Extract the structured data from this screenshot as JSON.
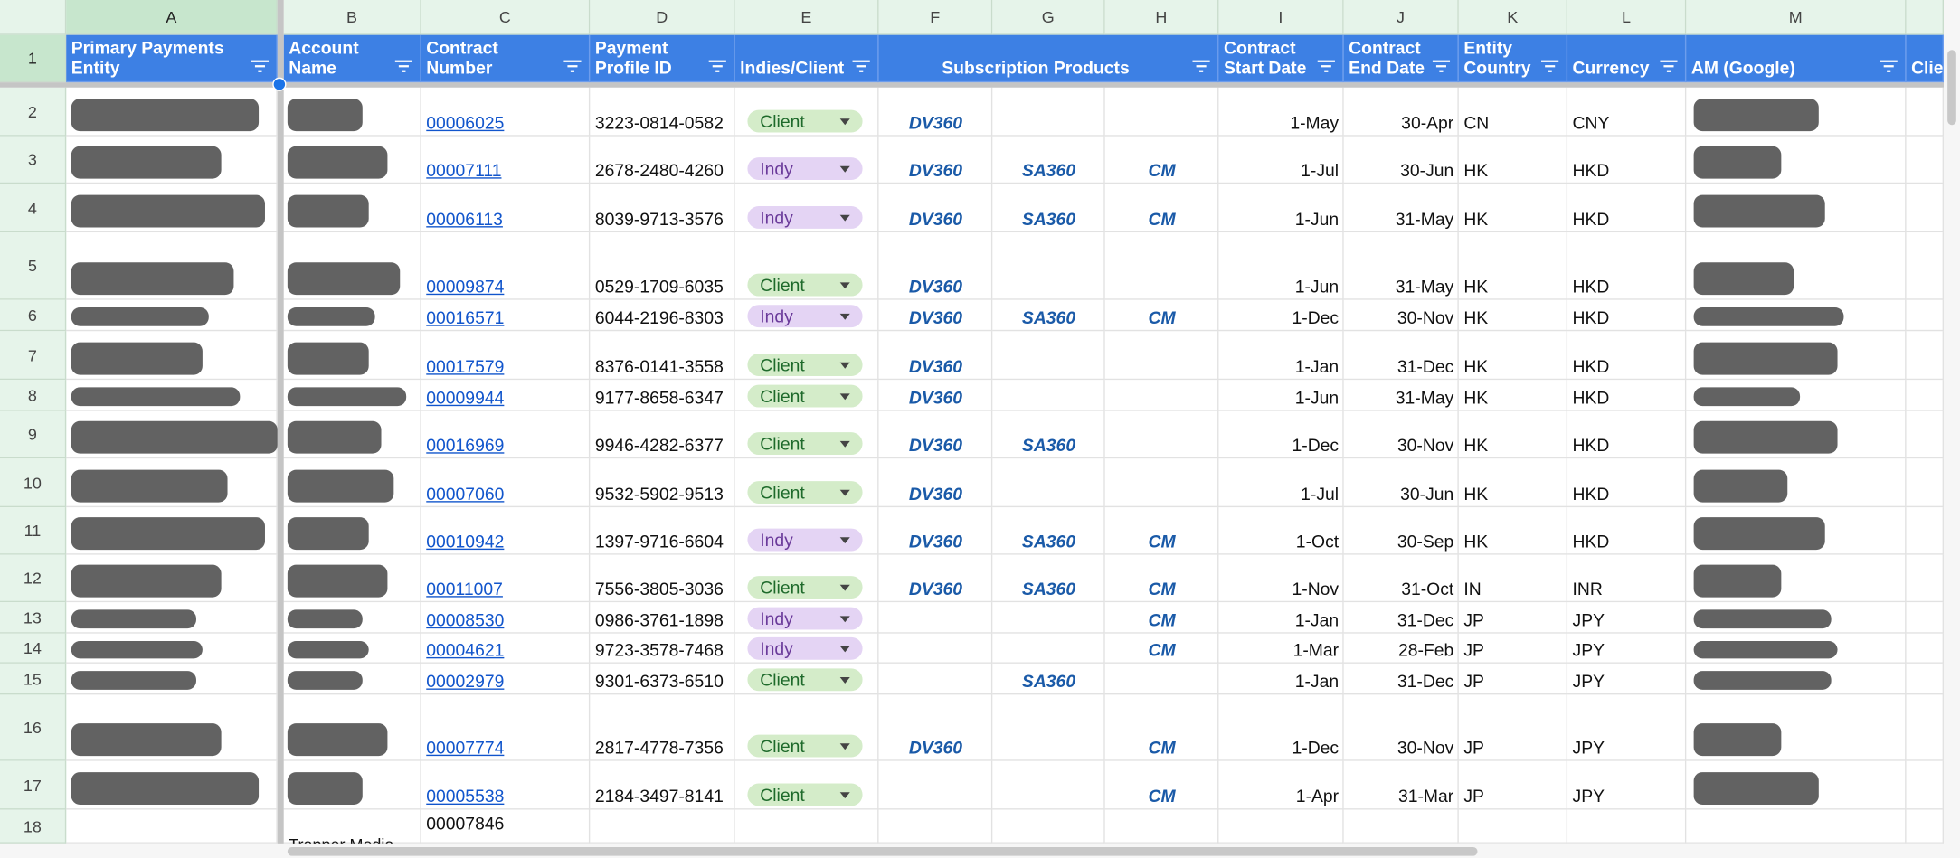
{
  "column_letters": [
    "A",
    "B",
    "C",
    "D",
    "E",
    "F",
    "G",
    "H",
    "I",
    "J",
    "K",
    "L",
    "M"
  ],
  "header": [
    "Primary Payments Entity",
    "Account Name",
    "Contract Number",
    "Payment Profile ID",
    "Indies/Client",
    "Subscription Products",
    "Contract Start Date",
    "Contract End Date",
    "Entity Country",
    "Currency",
    "AM (Google)",
    "Clie"
  ],
  "row_numbers": [
    1,
    2,
    3,
    4,
    5,
    6,
    7,
    8,
    9,
    10,
    11,
    12,
    13,
    14,
    15,
    16,
    17,
    18
  ],
  "rows": [
    {
      "contract": "00006025",
      "profile": "3223-0814-0582",
      "type": "Client",
      "dv360": "DV360",
      "start": "1-May",
      "end": "30-Apr",
      "country": "CN",
      "currency": "CNY"
    },
    {
      "contract": "00007111",
      "profile": "2678-2480-4260",
      "type": "Indy",
      "dv360": "DV360",
      "sa360": "SA360",
      "cm": "CM",
      "start": "1-Jul",
      "end": "30-Jun",
      "country": "HK",
      "currency": "HKD"
    },
    {
      "contract": "00006113",
      "profile": "8039-9713-3576",
      "type": "Indy",
      "dv360": "DV360",
      "sa360": "SA360",
      "cm": "CM",
      "start": "1-Jun",
      "end": "31-May",
      "country": "HK",
      "currency": "HKD"
    },
    {
      "contract": "00009874",
      "profile": "0529-1709-6035",
      "type": "Client",
      "dv360": "DV360",
      "start": "1-Jun",
      "end": "31-May",
      "country": "HK",
      "currency": "HKD"
    },
    {
      "contract": "00016571",
      "profile": "6044-2196-8303",
      "type": "Indy",
      "dv360": "DV360",
      "sa360": "SA360",
      "cm": "CM",
      "start": "1-Dec",
      "end": "30-Nov",
      "country": "HK",
      "currency": "HKD"
    },
    {
      "contract": "00017579",
      "profile": "8376-0141-3558",
      "type": "Client",
      "dv360": "DV360",
      "start": "1-Jan",
      "end": "31-Dec",
      "country": "HK",
      "currency": "HKD"
    },
    {
      "contract": "00009944",
      "profile": "9177-8658-6347",
      "type": "Client",
      "dv360": "DV360",
      "start": "1-Jun",
      "end": "31-May",
      "country": "HK",
      "currency": "HKD"
    },
    {
      "contract": "00016969",
      "profile": "9946-4282-6377",
      "type": "Client",
      "dv360": "DV360",
      "sa360": "SA360",
      "start": "1-Dec",
      "end": "30-Nov",
      "country": "HK",
      "currency": "HKD"
    },
    {
      "contract": "00007060",
      "profile": "9532-5902-9513",
      "type": "Client",
      "dv360": "DV360",
      "start": "1-Jul",
      "end": "30-Jun",
      "country": "HK",
      "currency": "HKD"
    },
    {
      "contract": "00010942",
      "profile": "1397-9716-6604",
      "type": "Indy",
      "dv360": "DV360",
      "sa360": "SA360",
      "cm": "CM",
      "start": "1-Oct",
      "end": "30-Sep",
      "country": "HK",
      "currency": "HKD"
    },
    {
      "contract": "00011007",
      "profile": "7556-3805-3036",
      "type": "Client",
      "dv360": "DV360",
      "sa360": "SA360",
      "cm": "CM",
      "start": "1-Nov",
      "end": "31-Oct",
      "country": "IN",
      "currency": "INR"
    },
    {
      "contract": "00008530",
      "profile": "0986-3761-1898",
      "type": "Indy",
      "cm": "CM",
      "start": "1-Jan",
      "end": "31-Dec",
      "country": "JP",
      "currency": "JPY"
    },
    {
      "contract": "00004621",
      "profile": "9723-3578-7468",
      "type": "Indy",
      "cm": "CM",
      "start": "1-Mar",
      "end": "28-Feb",
      "country": "JP",
      "currency": "JPY"
    },
    {
      "contract": "00002979",
      "profile": "9301-6373-6510",
      "type": "Client",
      "sa360": "SA360",
      "start": "1-Jan",
      "end": "31-Dec",
      "country": "JP",
      "currency": "JPY"
    },
    {
      "contract": "00007774",
      "profile": "2817-4778-7356",
      "type": "Client",
      "dv360": "DV360",
      "cm": "CM",
      "start": "1-Dec",
      "end": "30-Nov",
      "country": "JP",
      "currency": "JPY"
    },
    {
      "contract": "00005538",
      "profile": "2184-3497-8141",
      "type": "Client",
      "cm": "CM",
      "start": "1-Apr",
      "end": "31-Mar",
      "country": "JP",
      "currency": "JPY"
    },
    {
      "contract": "00007846",
      "account": "Trapper Media"
    }
  ]
}
